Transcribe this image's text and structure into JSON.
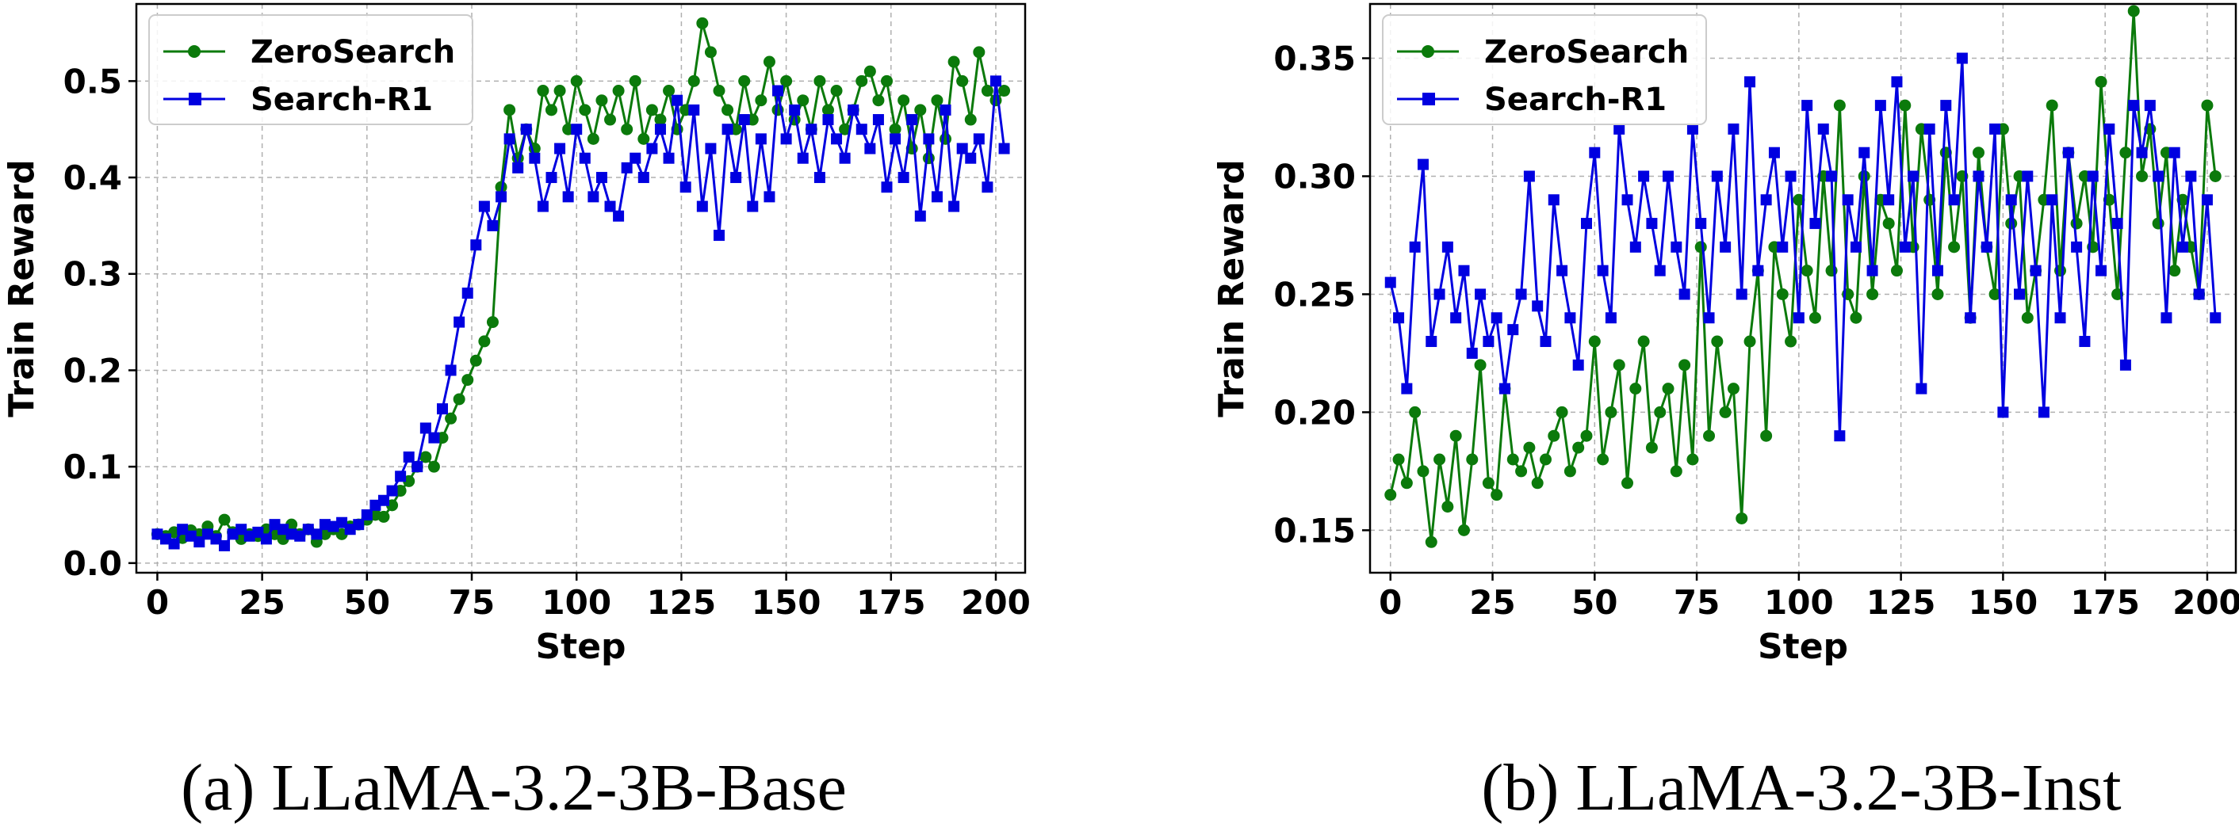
{
  "colors": {
    "zerosearch": "#0b7a0b",
    "searchr1": "#0000e0"
  },
  "chart_data": [
    {
      "type": "line",
      "caption": "(a) LLaMA-3.2-3B-Base",
      "xlabel": "Step",
      "ylabel": "Train Reward",
      "xlim": [
        -5,
        207
      ],
      "ylim": [
        -0.01,
        0.58
      ],
      "xticks": [
        0,
        25,
        50,
        75,
        100,
        125,
        150,
        175,
        200
      ],
      "xtick_labels": [
        "0",
        "25",
        "50",
        "75",
        "100",
        "125",
        "150",
        "175",
        "200"
      ],
      "yticks": [
        0.0,
        0.1,
        0.2,
        0.3,
        0.4,
        0.5
      ],
      "ytick_labels": [
        "0.0",
        "0.1",
        "0.2",
        "0.3",
        "0.4",
        "0.5"
      ],
      "grid": true,
      "legend_position": "top-left",
      "series": [
        {
          "name": "ZeroSearch",
          "marker": "circle",
          "x": [
            0,
            2,
            4,
            6,
            8,
            10,
            12,
            14,
            16,
            18,
            20,
            22,
            24,
            26,
            28,
            30,
            32,
            34,
            36,
            38,
            40,
            42,
            44,
            46,
            48,
            50,
            52,
            54,
            56,
            58,
            60,
            62,
            64,
            66,
            68,
            70,
            72,
            74,
            76,
            78,
            80,
            82,
            84,
            86,
            88,
            90,
            92,
            94,
            96,
            98,
            100,
            102,
            104,
            106,
            108,
            110,
            112,
            114,
            116,
            118,
            120,
            122,
            124,
            126,
            128,
            130,
            132,
            134,
            136,
            138,
            140,
            142,
            144,
            146,
            148,
            150,
            152,
            154,
            156,
            158,
            160,
            162,
            164,
            166,
            168,
            170,
            172,
            174,
            176,
            178,
            180,
            182,
            184,
            186,
            188,
            190,
            192,
            194,
            196,
            198,
            200,
            202
          ],
          "values": [
            0.03,
            0.028,
            0.032,
            0.026,
            0.034,
            0.03,
            0.038,
            0.028,
            0.045,
            0.032,
            0.025,
            0.03,
            0.028,
            0.035,
            0.03,
            0.025,
            0.04,
            0.03,
            0.035,
            0.022,
            0.03,
            0.035,
            0.03,
            0.038,
            0.04,
            0.045,
            0.05,
            0.048,
            0.06,
            0.075,
            0.085,
            0.1,
            0.11,
            0.1,
            0.13,
            0.15,
            0.17,
            0.19,
            0.21,
            0.23,
            0.25,
            0.39,
            0.47,
            0.42,
            0.45,
            0.43,
            0.49,
            0.47,
            0.49,
            0.45,
            0.5,
            0.47,
            0.44,
            0.48,
            0.46,
            0.49,
            0.45,
            0.5,
            0.44,
            0.47,
            0.46,
            0.49,
            0.45,
            0.47,
            0.5,
            0.56,
            0.53,
            0.49,
            0.47,
            0.45,
            0.5,
            0.46,
            0.48,
            0.52,
            0.47,
            0.5,
            0.46,
            0.48,
            0.45,
            0.5,
            0.47,
            0.49,
            0.45,
            0.47,
            0.5,
            0.51,
            0.48,
            0.5,
            0.45,
            0.48,
            0.43,
            0.47,
            0.42,
            0.48,
            0.44,
            0.52,
            0.5,
            0.46,
            0.53,
            0.49,
            0.48,
            0.49
          ]
        },
        {
          "name": "Search-R1",
          "marker": "square",
          "x": [
            0,
            2,
            4,
            6,
            8,
            10,
            12,
            14,
            16,
            18,
            20,
            22,
            24,
            26,
            28,
            30,
            32,
            34,
            36,
            38,
            40,
            42,
            44,
            46,
            48,
            50,
            52,
            54,
            56,
            58,
            60,
            62,
            64,
            66,
            68,
            70,
            72,
            74,
            76,
            78,
            80,
            82,
            84,
            86,
            88,
            90,
            92,
            94,
            96,
            98,
            100,
            102,
            104,
            106,
            108,
            110,
            112,
            114,
            116,
            118,
            120,
            122,
            124,
            126,
            128,
            130,
            132,
            134,
            136,
            138,
            140,
            142,
            144,
            146,
            148,
            150,
            152,
            154,
            156,
            158,
            160,
            162,
            164,
            166,
            168,
            170,
            172,
            174,
            176,
            178,
            180,
            182,
            184,
            186,
            188,
            190,
            192,
            194,
            196,
            198,
            200,
            202
          ],
          "values": [
            0.03,
            0.025,
            0.02,
            0.035,
            0.028,
            0.022,
            0.03,
            0.025,
            0.018,
            0.03,
            0.035,
            0.028,
            0.032,
            0.025,
            0.04,
            0.035,
            0.03,
            0.028,
            0.035,
            0.03,
            0.04,
            0.038,
            0.042,
            0.035,
            0.04,
            0.05,
            0.06,
            0.065,
            0.075,
            0.09,
            0.11,
            0.1,
            0.14,
            0.13,
            0.16,
            0.2,
            0.25,
            0.28,
            0.33,
            0.37,
            0.35,
            0.38,
            0.44,
            0.41,
            0.45,
            0.42,
            0.37,
            0.4,
            0.43,
            0.38,
            0.45,
            0.42,
            0.38,
            0.4,
            0.37,
            0.36,
            0.41,
            0.42,
            0.4,
            0.43,
            0.45,
            0.42,
            0.48,
            0.39,
            0.47,
            0.37,
            0.43,
            0.34,
            0.45,
            0.4,
            0.46,
            0.37,
            0.44,
            0.38,
            0.49,
            0.44,
            0.47,
            0.42,
            0.45,
            0.4,
            0.46,
            0.44,
            0.42,
            0.47,
            0.45,
            0.43,
            0.46,
            0.39,
            0.44,
            0.4,
            0.46,
            0.36,
            0.44,
            0.38,
            0.47,
            0.37,
            0.43,
            0.42,
            0.44,
            0.39,
            0.5,
            0.43
          ]
        }
      ]
    },
    {
      "type": "line",
      "caption": "(b) LLaMA-3.2-3B-Inst",
      "xlabel": "Step",
      "ylabel": "Train Reward",
      "xlim": [
        -5,
        207
      ],
      "ylim": [
        0.132,
        0.373
      ],
      "xticks": [
        0,
        25,
        50,
        75,
        100,
        125,
        150,
        175,
        200
      ],
      "xtick_labels": [
        "0",
        "25",
        "50",
        "75",
        "100",
        "125",
        "150",
        "175",
        "200"
      ],
      "yticks": [
        0.15,
        0.2,
        0.25,
        0.3,
        0.35
      ],
      "ytick_labels": [
        "0.15",
        "0.20",
        "0.25",
        "0.30",
        "0.35"
      ],
      "grid": true,
      "legend_position": "top-left",
      "series": [
        {
          "name": "ZeroSearch",
          "marker": "circle",
          "x": [
            0,
            2,
            4,
            6,
            8,
            10,
            12,
            14,
            16,
            18,
            20,
            22,
            24,
            26,
            28,
            30,
            32,
            34,
            36,
            38,
            40,
            42,
            44,
            46,
            48,
            50,
            52,
            54,
            56,
            58,
            60,
            62,
            64,
            66,
            68,
            70,
            72,
            74,
            76,
            78,
            80,
            82,
            84,
            86,
            88,
            90,
            92,
            94,
            96,
            98,
            100,
            102,
            104,
            106,
            108,
            110,
            112,
            114,
            116,
            118,
            120,
            122,
            124,
            126,
            128,
            130,
            132,
            134,
            136,
            138,
            140,
            142,
            144,
            146,
            148,
            150,
            152,
            154,
            156,
            158,
            160,
            162,
            164,
            166,
            168,
            170,
            172,
            174,
            176,
            178,
            180,
            182,
            184,
            186,
            188,
            190,
            192,
            194,
            196,
            198,
            200,
            202
          ],
          "values": [
            0.165,
            0.18,
            0.17,
            0.2,
            0.175,
            0.145,
            0.18,
            0.16,
            0.19,
            0.15,
            0.18,
            0.22,
            0.17,
            0.165,
            0.21,
            0.18,
            0.175,
            0.185,
            0.17,
            0.18,
            0.19,
            0.2,
            0.175,
            0.185,
            0.19,
            0.23,
            0.18,
            0.2,
            0.22,
            0.17,
            0.21,
            0.23,
            0.185,
            0.2,
            0.21,
            0.175,
            0.22,
            0.18,
            0.27,
            0.19,
            0.23,
            0.2,
            0.21,
            0.155,
            0.23,
            0.26,
            0.19,
            0.27,
            0.25,
            0.23,
            0.29,
            0.26,
            0.24,
            0.3,
            0.26,
            0.33,
            0.25,
            0.24,
            0.3,
            0.25,
            0.29,
            0.28,
            0.26,
            0.33,
            0.27,
            0.32,
            0.29,
            0.25,
            0.31,
            0.27,
            0.3,
            0.24,
            0.31,
            0.27,
            0.25,
            0.32,
            0.28,
            0.3,
            0.24,
            0.26,
            0.29,
            0.33,
            0.26,
            0.31,
            0.28,
            0.3,
            0.27,
            0.34,
            0.29,
            0.25,
            0.31,
            0.37,
            0.3,
            0.32,
            0.28,
            0.31,
            0.26,
            0.29,
            0.27,
            0.25,
            0.33,
            0.3
          ]
        },
        {
          "name": "Search-R1",
          "marker": "square",
          "x": [
            0,
            2,
            4,
            6,
            8,
            10,
            12,
            14,
            16,
            18,
            20,
            22,
            24,
            26,
            28,
            30,
            32,
            34,
            36,
            38,
            40,
            42,
            44,
            46,
            48,
            50,
            52,
            54,
            56,
            58,
            60,
            62,
            64,
            66,
            68,
            70,
            72,
            74,
            76,
            78,
            80,
            82,
            84,
            86,
            88,
            90,
            92,
            94,
            96,
            98,
            100,
            102,
            104,
            106,
            108,
            110,
            112,
            114,
            116,
            118,
            120,
            122,
            124,
            126,
            128,
            130,
            132,
            134,
            136,
            138,
            140,
            142,
            144,
            146,
            148,
            150,
            152,
            154,
            156,
            158,
            160,
            162,
            164,
            166,
            168,
            170,
            172,
            174,
            176,
            178,
            180,
            182,
            184,
            186,
            188,
            190,
            192,
            194,
            196,
            198,
            200,
            202
          ],
          "values": [
            0.255,
            0.24,
            0.21,
            0.27,
            0.305,
            0.23,
            0.25,
            0.27,
            0.24,
            0.26,
            0.225,
            0.25,
            0.23,
            0.24,
            0.21,
            0.235,
            0.25,
            0.3,
            0.245,
            0.23,
            0.29,
            0.26,
            0.24,
            0.22,
            0.28,
            0.31,
            0.26,
            0.24,
            0.32,
            0.29,
            0.27,
            0.3,
            0.28,
            0.26,
            0.3,
            0.27,
            0.25,
            0.32,
            0.28,
            0.24,
            0.3,
            0.27,
            0.32,
            0.25,
            0.34,
            0.26,
            0.29,
            0.31,
            0.27,
            0.3,
            0.24,
            0.33,
            0.28,
            0.32,
            0.3,
            0.19,
            0.29,
            0.27,
            0.31,
            0.26,
            0.33,
            0.29,
            0.34,
            0.27,
            0.3,
            0.21,
            0.32,
            0.26,
            0.33,
            0.29,
            0.35,
            0.24,
            0.3,
            0.27,
            0.32,
            0.2,
            0.29,
            0.25,
            0.3,
            0.26,
            0.2,
            0.29,
            0.24,
            0.31,
            0.27,
            0.23,
            0.3,
            0.26,
            0.32,
            0.28,
            0.22,
            0.33,
            0.31,
            0.33,
            0.3,
            0.24,
            0.31,
            0.27,
            0.3,
            0.25,
            0.29,
            0.24
          ]
        }
      ]
    }
  ]
}
